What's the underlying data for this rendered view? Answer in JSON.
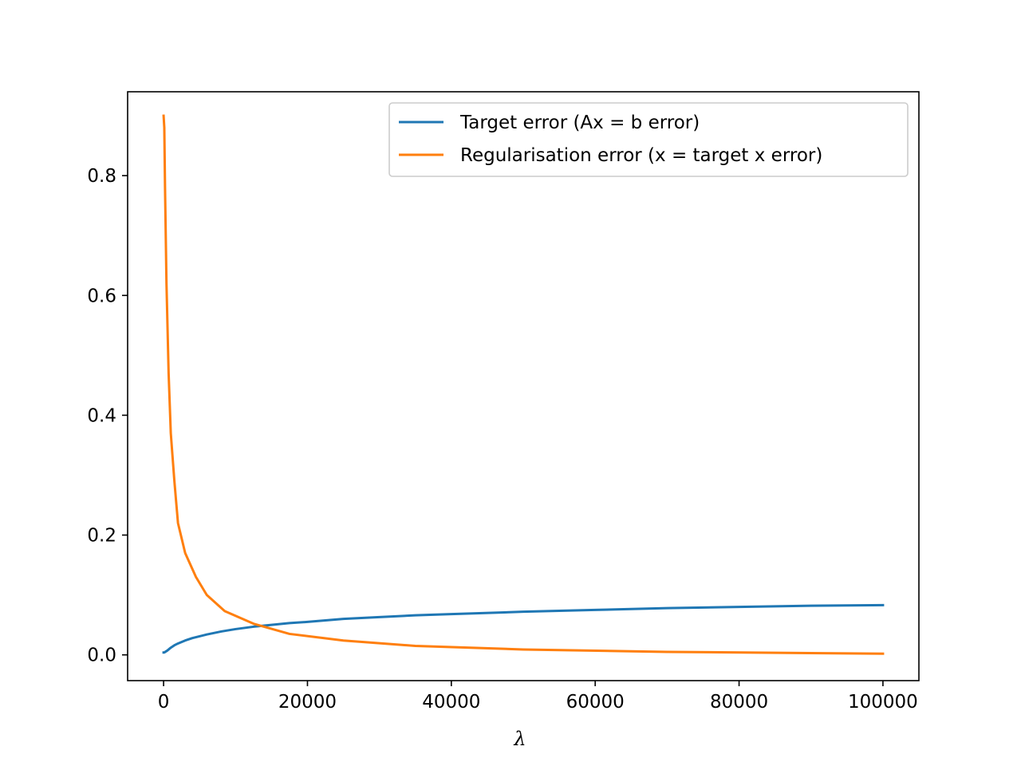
{
  "chart_data": {
    "type": "line",
    "title": "",
    "xlabel": "λ",
    "ylabel": "",
    "xlim": [
      -5000,
      105000
    ],
    "ylim": [
      -0.043,
      0.94
    ],
    "xticks": [
      0,
      20000,
      40000,
      60000,
      80000,
      100000
    ],
    "yticks": [
      0.0,
      0.2,
      0.4,
      0.6,
      0.8
    ],
    "xtick_labels": [
      "0",
      "20000",
      "40000",
      "60000",
      "80000",
      "100000"
    ],
    "ytick_labels": [
      "0.0",
      "0.2",
      "0.4",
      "0.6",
      "0.8"
    ],
    "grid": false,
    "legend_position": "top-right",
    "series": [
      {
        "name": "Target error (Ax = b error)",
        "color": "#1f77b4",
        "x": [
          1,
          100,
          500,
          1000,
          1500,
          2000,
          3000,
          4000,
          5000,
          6000,
          8000,
          10000,
          12500,
          15000,
          17500,
          20000,
          25000,
          30000,
          35000,
          40000,
          50000,
          60000,
          70000,
          80000,
          90000,
          100000
        ],
        "y": [
          0.004,
          0.004,
          0.007,
          0.012,
          0.016,
          0.019,
          0.024,
          0.028,
          0.031,
          0.034,
          0.039,
          0.043,
          0.047,
          0.05,
          0.053,
          0.055,
          0.06,
          0.063,
          0.066,
          0.068,
          0.072,
          0.075,
          0.078,
          0.08,
          0.082,
          0.083
        ]
      },
      {
        "name": "Regularisation error (x = target x error)",
        "color": "#ff7f0e",
        "x": [
          1,
          100,
          200,
          400,
          700,
          1000,
          1500,
          2000,
          3000,
          4500,
          6000,
          8500,
          12500,
          17500,
          25000,
          35000,
          50000,
          70000,
          100000
        ],
        "y": [
          0.9,
          0.88,
          0.78,
          0.62,
          0.47,
          0.37,
          0.29,
          0.22,
          0.17,
          0.13,
          0.1,
          0.073,
          0.052,
          0.035,
          0.024,
          0.015,
          0.009,
          0.005,
          0.002
        ]
      }
    ]
  }
}
